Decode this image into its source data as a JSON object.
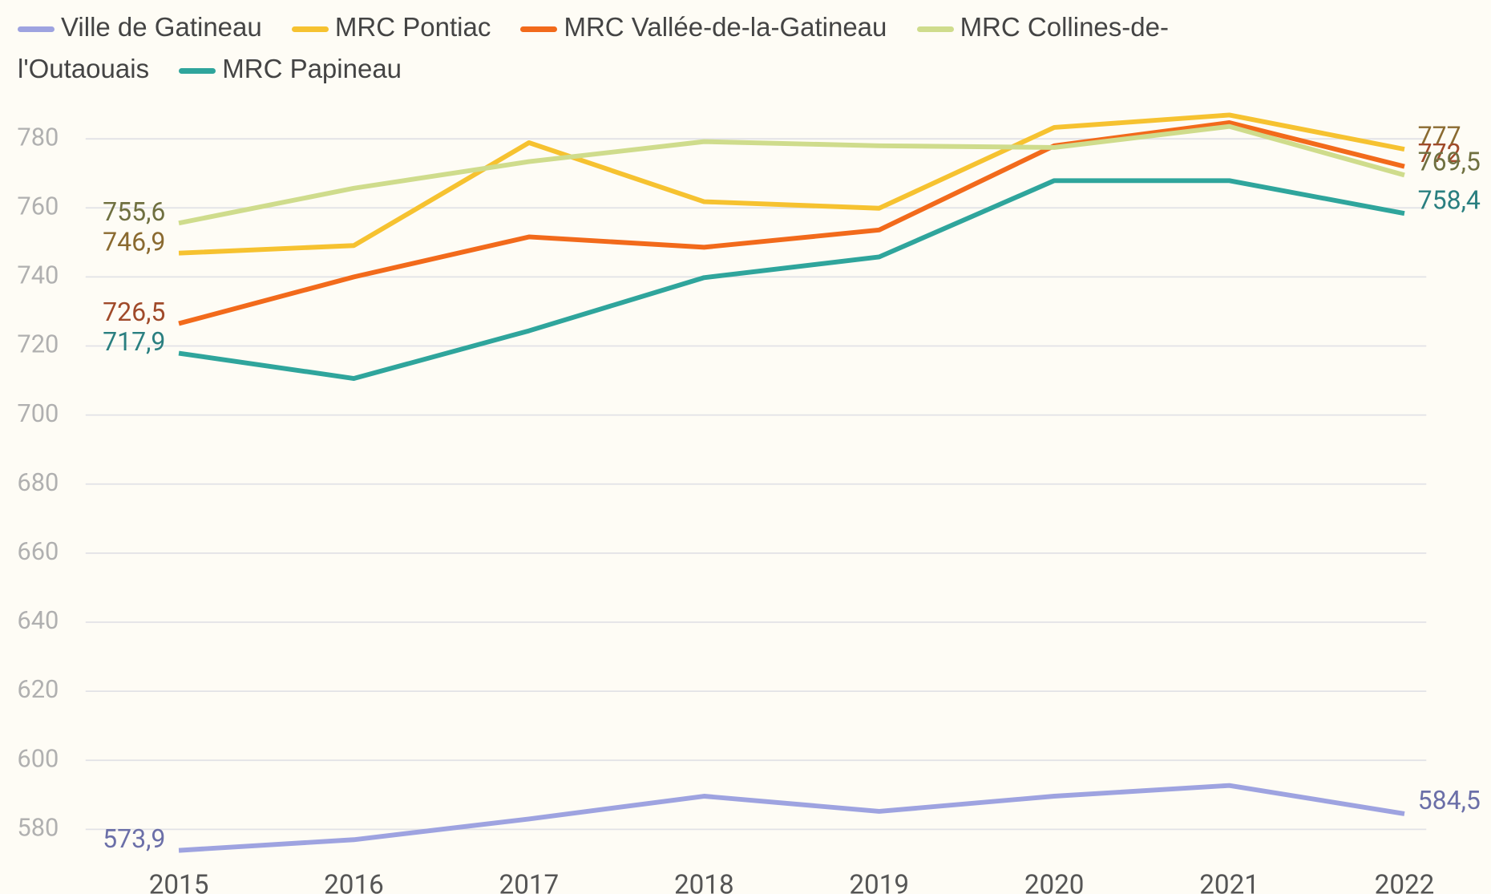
{
  "chart_data": {
    "type": "line",
    "categories": [
      "2015",
      "2016",
      "2017",
      "2018",
      "2019",
      "2020",
      "2021",
      "2022"
    ],
    "series": [
      {
        "name": "Ville de Gatineau",
        "color": "#9ea3e0",
        "label_color": "#6b6fa8",
        "values": [
          573.9,
          577,
          583,
          589.6,
          585.2,
          589.6,
          592.7,
          584.5
        ],
        "value_labels": [
          "573,9",
          null,
          null,
          null,
          null,
          null,
          null,
          "584,5"
        ]
      },
      {
        "name": "MRC Pontiac",
        "color": "#f6c230",
        "label_color": "#8a6a30",
        "values": [
          746.9,
          749.1,
          778.9,
          761.8,
          759.9,
          783.3,
          786.9,
          777
        ],
        "value_labels": [
          "746,9",
          null,
          null,
          null,
          null,
          null,
          null,
          "777"
        ]
      },
      {
        "name": "MRC Vallée-de-la-Gatineau",
        "color": "#f26a1b",
        "label_color": "#a04a2a",
        "values": [
          726.5,
          740,
          751.6,
          748.6,
          753.6,
          778,
          784.7,
          772
        ],
        "value_labels": [
          "726,5",
          null,
          null,
          null,
          null,
          null,
          null,
          "772"
        ]
      },
      {
        "name": "MRC Collines-de-l'Outaouais",
        "color": "#cfdc8c",
        "label_color": "#6f7040",
        "values": [
          755.6,
          765.7,
          773.4,
          779.2,
          778,
          777.5,
          783.6,
          769.5
        ],
        "value_labels": [
          "755,6",
          null,
          null,
          null,
          null,
          null,
          null,
          "769,5"
        ]
      },
      {
        "name": "MRC Papineau",
        "color": "#2fa59c",
        "label_color": "#2a7f80",
        "values": [
          717.9,
          710.6,
          724.4,
          739.8,
          745.8,
          767.9,
          767.9,
          758.4
        ],
        "value_labels": [
          "717,9",
          null,
          null,
          null,
          null,
          null,
          null,
          "758,4"
        ]
      }
    ],
    "ylim": [
      562,
      792
    ],
    "yticks": [
      580,
      600,
      620,
      640,
      660,
      680,
      700,
      720,
      740,
      760,
      780
    ],
    "grid": true
  }
}
